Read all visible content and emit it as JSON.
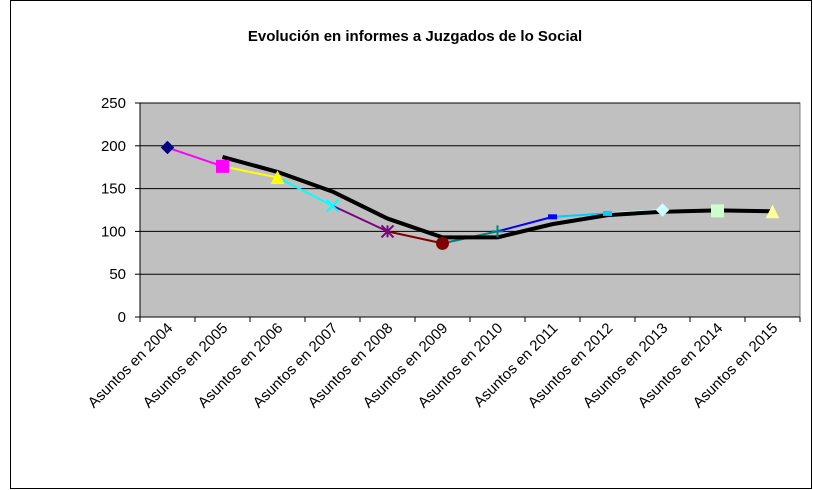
{
  "chart_data": {
    "type": "line",
    "title": "Evolución en informes a Juzgados de lo Social",
    "categories": [
      "Asuntos en 2004",
      "Asuntos en 2005",
      "Asuntos en 2006",
      "Asuntos en 2007",
      "Asuntos en 2008",
      "Asuntos en 2009",
      "Asuntos en 2010",
      "Asuntos en 2011",
      "Asuntos en 2012",
      "Asuntos en 2013",
      "Asuntos en 2014",
      "Asuntos en 2015"
    ],
    "series": [
      {
        "values": [
          198,
          176,
          163,
          130,
          100,
          86,
          100,
          117,
          121,
          125,
          124,
          123
        ],
        "point_colors": [
          "#000080",
          "#ff00ff",
          "#ffff00",
          "#00ffff",
          "#800080",
          "#800000",
          "#008080",
          "#0000ff",
          "#00ccff",
          "#ccffff",
          "#ccffcc",
          "#ffff99"
        ],
        "markers": [
          "diamond",
          "square",
          "triangle",
          "x",
          "star",
          "circle",
          "plus",
          "dash",
          "dash",
          "diamond",
          "square",
          "triangle"
        ]
      }
    ],
    "trendline": {
      "type": "moving_average",
      "period": 2,
      "color": "#000000"
    },
    "ylim": [
      0,
      250
    ],
    "yticks": [
      0,
      50,
      100,
      150,
      200,
      250
    ],
    "grid": true,
    "plot_background": "#c0c0c0"
  }
}
